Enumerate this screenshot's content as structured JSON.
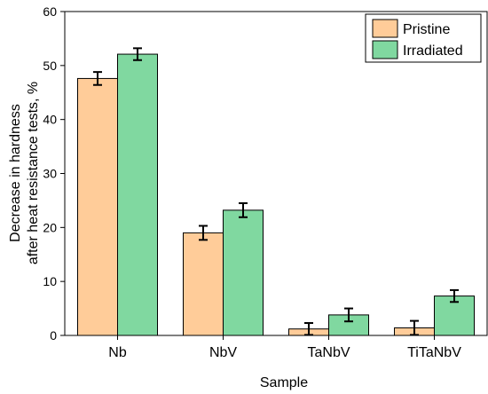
{
  "chart_data": {
    "type": "bar",
    "title": "",
    "xlabel": "Sample",
    "ylabel_line1": "Decrease in hardness",
    "ylabel_line2": "after heat resistance tests, %",
    "ylim": [
      0,
      60
    ],
    "yticks": [
      0,
      10,
      20,
      30,
      40,
      50,
      60
    ],
    "categories": [
      "Nb",
      "NbV",
      "TaNbV",
      "TiTaNbV"
    ],
    "series": [
      {
        "name": "Pristine",
        "color": "#FFCC99",
        "values": [
          47.6,
          19.0,
          1.2,
          1.4
        ],
        "errors": [
          1.2,
          1.3,
          1.1,
          1.3
        ]
      },
      {
        "name": "Irradiated",
        "color": "#80D8A0",
        "values": [
          52.1,
          23.2,
          3.8,
          7.3
        ],
        "errors": [
          1.1,
          1.3,
          1.2,
          1.1
        ]
      }
    ],
    "legend_position": "top-right"
  }
}
